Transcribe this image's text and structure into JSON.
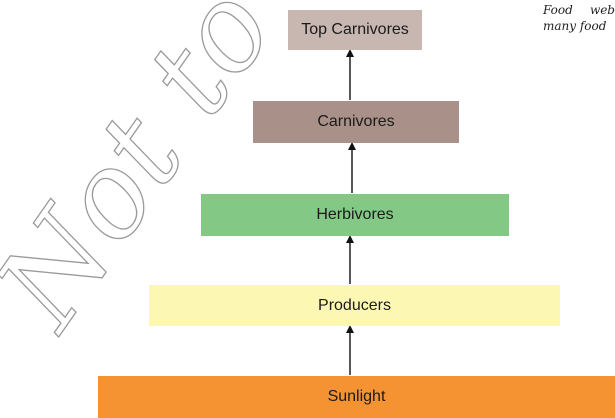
{
  "watermark": {
    "text": "Not to be re",
    "colors": {
      "stroke": "#9a9a9a"
    }
  },
  "side_note": {
    "line1_word1": "Food",
    "line1_word2": "web",
    "line2": "many food"
  },
  "levels": [
    {
      "label": "Top Carnivores",
      "color": "#c8b7b0"
    },
    {
      "label": "Carnivores",
      "color": "#a99189"
    },
    {
      "label": "Herbivores",
      "color": "#83c985"
    },
    {
      "label": "Producers",
      "color": "#fdf7b4"
    },
    {
      "label": "Sunlight",
      "color": "#f59332"
    }
  ],
  "arrow_color": "#111111"
}
